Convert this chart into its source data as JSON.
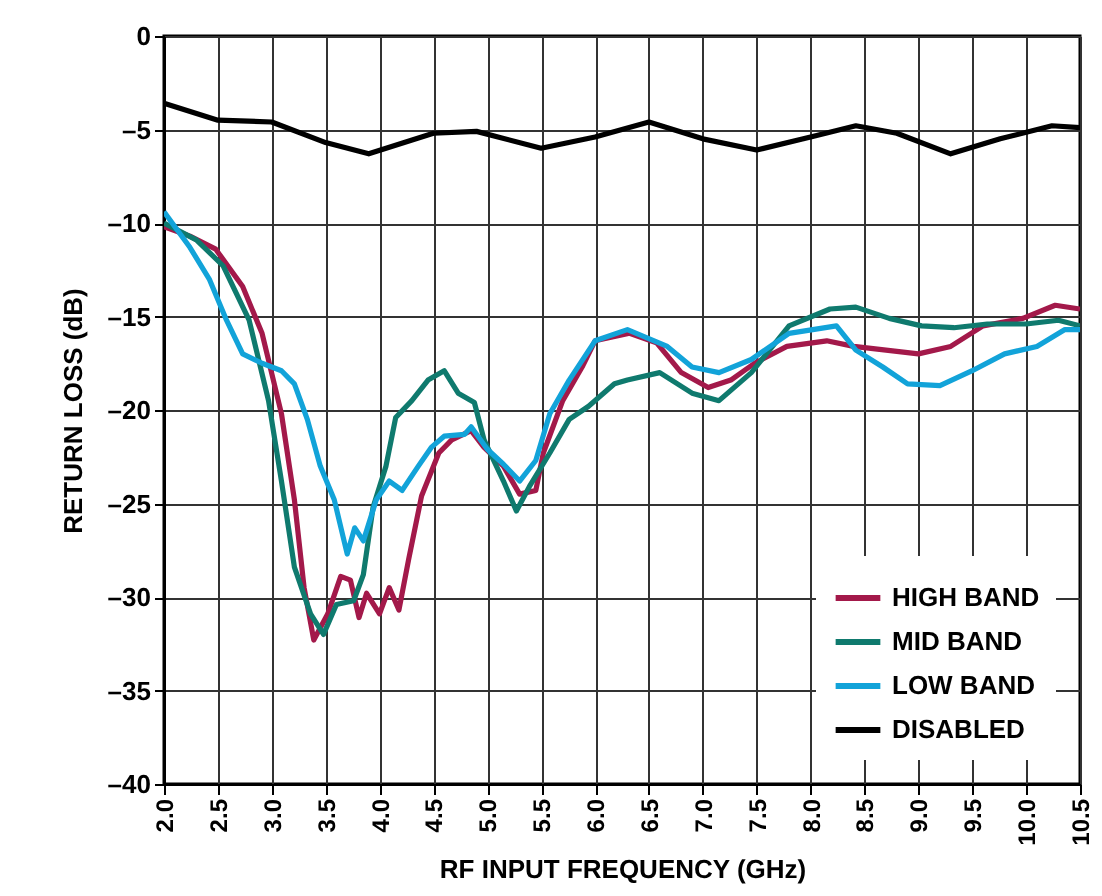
{
  "chart_data": {
    "type": "line",
    "xlabel": "RF INPUT FREQUENCY (GHz)",
    "ylabel": "RETURN LOSS (dB)",
    "xlim": [
      2.0,
      10.5
    ],
    "xticks": [
      {
        "value": 2,
        "label": "2.0"
      },
      2.5,
      {
        "value": 3,
        "label": "3.0"
      },
      3.5,
      {
        "value": 4,
        "label": "4.0"
      },
      4.5,
      {
        "value": 5,
        "label": "5.0"
      },
      5.5,
      {
        "value": 6,
        "label": "6.0"
      },
      6.5,
      {
        "value": 7,
        "label": "7.0"
      },
      7.5,
      {
        "value": 8,
        "label": "8.0"
      },
      8.5,
      {
        "value": 9,
        "label": "9.0"
      },
      9.5,
      {
        "value": 10,
        "label": "10.0"
      },
      10.5
    ],
    "ylim": [
      -40,
      0
    ],
    "yticks": [
      0,
      {
        "value": -5,
        "label": "–5"
      },
      {
        "value": -10,
        "label": "–10"
      },
      {
        "value": -15,
        "label": "–15"
      },
      {
        "value": -20,
        "label": "–20"
      },
      {
        "value": -25,
        "label": "–25"
      },
      {
        "value": -30,
        "label": "–30"
      },
      {
        "value": -35,
        "label": "–35"
      },
      {
        "value": -40,
        "label": "–40"
      }
    ],
    "grid": true,
    "legend": "bottom right",
    "line_style": "solid",
    "marker": "none",
    "series": [
      {
        "name": "HIGH BAND",
        "color": "#a3194a",
        "x": [
          2.0,
          2.24,
          2.48,
          2.73,
          2.91,
          3.09,
          3.21,
          3.3,
          3.39,
          3.52,
          3.64,
          3.73,
          3.81,
          3.88,
          4.0,
          4.09,
          4.18,
          4.27,
          4.39,
          4.55,
          4.67,
          4.85,
          4.97,
          5.15,
          5.3,
          5.45,
          5.52,
          5.7,
          5.88,
          6.0,
          6.32,
          6.57,
          6.8,
          7.05,
          7.26,
          7.48,
          7.78,
          8.15,
          8.4,
          8.7,
          9.0,
          9.3,
          9.6,
          9.97,
          10.27,
          10.5
        ],
        "values": [
          -10.2,
          -10.7,
          -11.4,
          -13.4,
          -15.9,
          -20.2,
          -24.8,
          -29.5,
          -32.3,
          -30.9,
          -28.9,
          -29.1,
          -31.1,
          -29.8,
          -30.9,
          -29.5,
          -30.7,
          -28,
          -24.6,
          -22.3,
          -21.6,
          -21.1,
          -22,
          -23,
          -24.5,
          -24.3,
          -22.3,
          -19.5,
          -17.7,
          -16.3,
          -15.9,
          -16.4,
          -18,
          -18.8,
          -18.4,
          -17.5,
          -16.6,
          -16.3,
          -16.6,
          -16.8,
          -17,
          -16.6,
          -15.5,
          -15.1,
          -14.4,
          -14.6
        ]
      },
      {
        "name": "MID BAND",
        "color": "#0f7a6e",
        "x": [
          2.0,
          2.3,
          2.55,
          2.79,
          2.97,
          3.09,
          3.21,
          3.36,
          3.48,
          3.6,
          3.76,
          3.85,
          3.94,
          4.06,
          4.15,
          4.3,
          4.45,
          4.6,
          4.73,
          4.88,
          4.97,
          5.15,
          5.27,
          5.39,
          5.58,
          5.76,
          5.94,
          6.18,
          6.3,
          6.6,
          6.9,
          7.15,
          7.45,
          7.8,
          8.18,
          8.42,
          8.73,
          9.03,
          9.33,
          9.64,
          10.0,
          10.3,
          10.5
        ],
        "values": [
          -10,
          -10.9,
          -12.3,
          -15.2,
          -19.5,
          -23.8,
          -28.4,
          -30.9,
          -32,
          -30.4,
          -30.2,
          -28.8,
          -25.2,
          -23,
          -20.4,
          -19.5,
          -18.4,
          -17.9,
          -19.1,
          -19.6,
          -21.6,
          -23.8,
          -25.4,
          -24.1,
          -22.3,
          -20.5,
          -19.8,
          -18.6,
          -18.4,
          -18,
          -19.1,
          -19.5,
          -18,
          -15.5,
          -14.6,
          -14.5,
          -15.1,
          -15.5,
          -15.6,
          -15.4,
          -15.4,
          -15.2,
          -15.5
        ]
      },
      {
        "name": "LOW BAND",
        "color": "#12a3d9",
        "x": [
          2.0,
          2.24,
          2.42,
          2.58,
          2.73,
          2.91,
          3.09,
          3.21,
          3.33,
          3.45,
          3.58,
          3.7,
          3.77,
          3.85,
          3.97,
          4.09,
          4.21,
          4.36,
          4.48,
          4.6,
          4.79,
          4.85,
          5.0,
          5.15,
          5.3,
          5.45,
          5.58,
          5.76,
          6.0,
          6.3,
          6.67,
          6.9,
          7.15,
          7.45,
          7.8,
          8.24,
          8.42,
          8.67,
          8.9,
          9.2,
          9.5,
          9.8,
          10.1,
          10.36,
          10.5
        ],
        "values": [
          -9.4,
          -11.3,
          -13,
          -15.2,
          -17,
          -17.5,
          -17.9,
          -18.6,
          -20.5,
          -23,
          -24.8,
          -27.7,
          -26.3,
          -27,
          -24.8,
          -23.8,
          -24.3,
          -23,
          -22,
          -21.4,
          -21.3,
          -20.9,
          -22.1,
          -22.9,
          -23.8,
          -22.7,
          -20.2,
          -18.4,
          -16.3,
          -15.7,
          -16.6,
          -17.7,
          -18,
          -17.3,
          -15.9,
          -15.5,
          -16.8,
          -17.7,
          -18.6,
          -18.7,
          -17.9,
          -17,
          -16.6,
          -15.7,
          -15.7
        ]
      },
      {
        "name": "DISABLED",
        "color": "#000000",
        "x": [
          2.0,
          2.5,
          3.0,
          3.5,
          3.9,
          4.5,
          4.9,
          5.5,
          6.0,
          6.5,
          7.0,
          7.5,
          8.0,
          8.42,
          8.8,
          9.3,
          9.76,
          10.24,
          10.5
        ],
        "values": [
          -3.6,
          -4.5,
          -4.6,
          -5.7,
          -6.3,
          -5.2,
          -5.1,
          -6.0,
          -5.4,
          -4.6,
          -5.5,
          -6.1,
          -5.4,
          -4.8,
          -5.2,
          -6.3,
          -5.5,
          -4.8,
          -4.9
        ]
      }
    ]
  }
}
